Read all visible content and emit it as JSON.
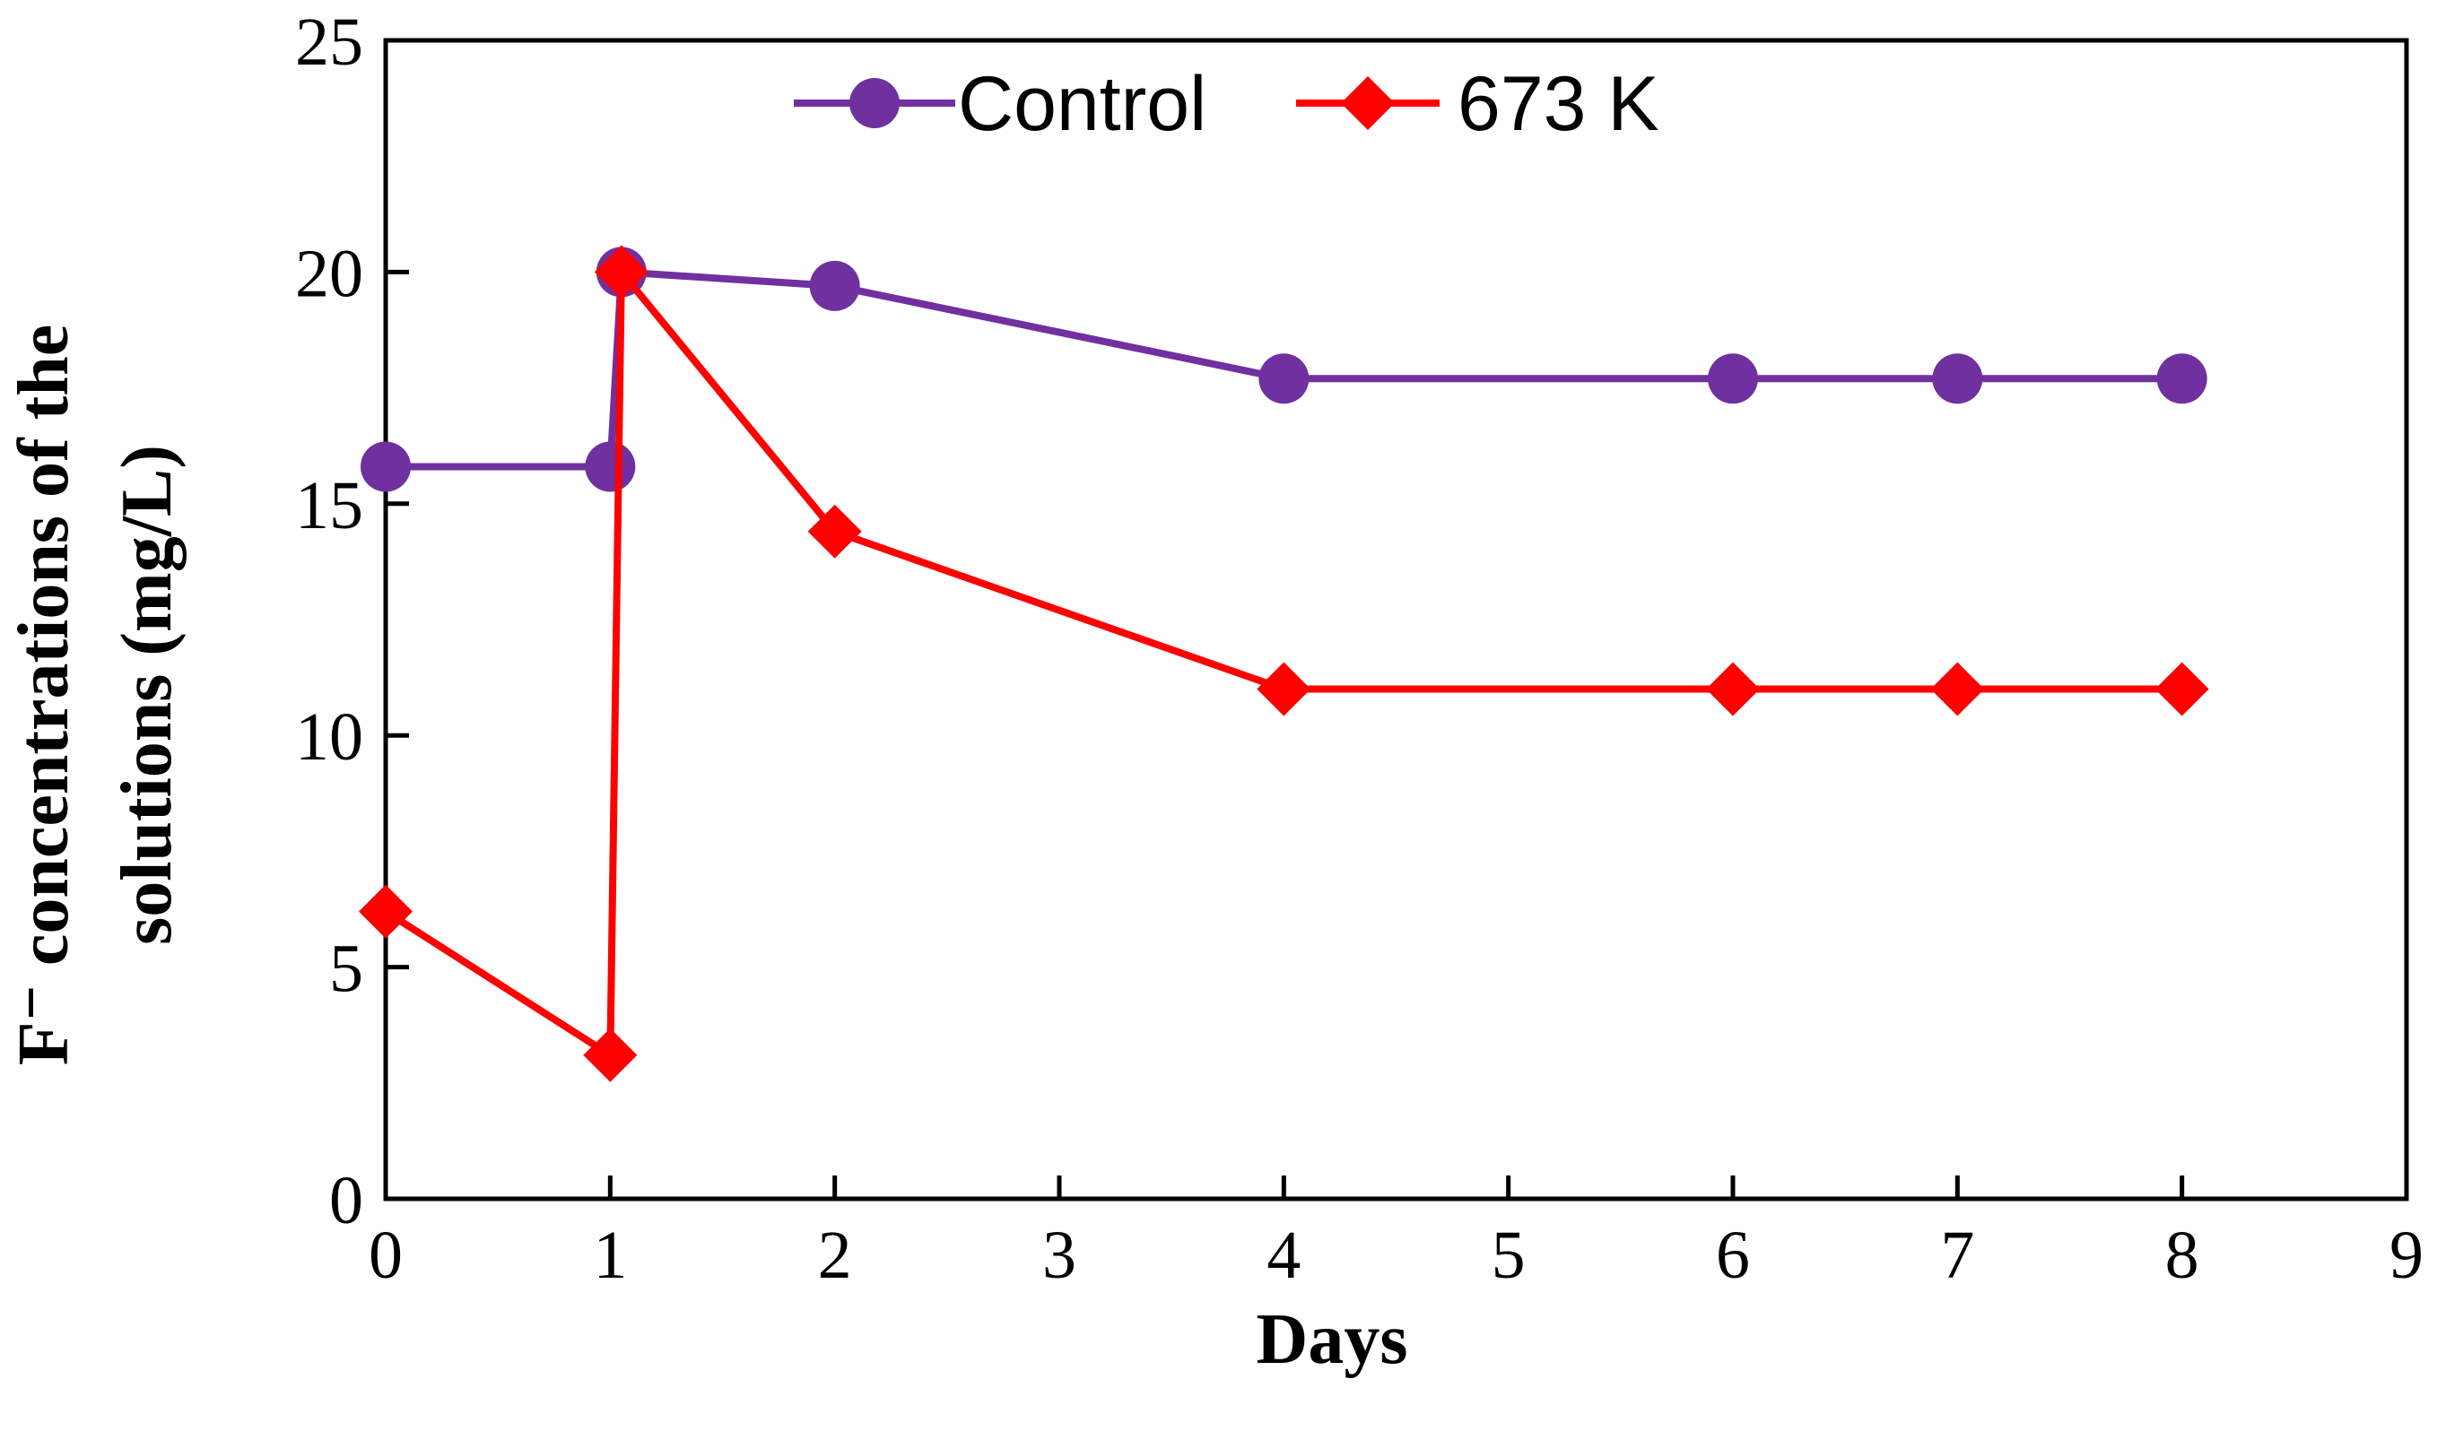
{
  "chart_data": {
    "type": "line",
    "title": "",
    "xlabel": "Days",
    "ylabel_line1": "F⁻ concentrations of the",
    "ylabel_line2": "solutions (mg/L)",
    "xlim": [
      0,
      9
    ],
    "ylim": [
      0,
      25
    ],
    "xticks": [
      "0",
      "1",
      "2",
      "3",
      "4",
      "5",
      "6",
      "7",
      "8",
      "9"
    ],
    "yticks": [
      "0",
      "5",
      "10",
      "15",
      "20",
      "25"
    ],
    "grid": false,
    "legend_position": "top-center",
    "series": [
      {
        "name": "Control",
        "color": "#7030a0",
        "marker": "circle",
        "x": [
          0,
          1,
          1.05,
          2,
          4,
          6,
          7,
          8
        ],
        "y": [
          15.8,
          15.8,
          20.0,
          19.7,
          17.7,
          17.7,
          17.7,
          17.7
        ]
      },
      {
        "name": "673 K",
        "color": "#ff0000",
        "marker": "diamond",
        "x": [
          0,
          1,
          1.05,
          2,
          4,
          6,
          7,
          8
        ],
        "y": [
          6.2,
          3.1,
          20.0,
          14.4,
          11.0,
          11.0,
          11.0,
          11.0
        ]
      }
    ]
  }
}
